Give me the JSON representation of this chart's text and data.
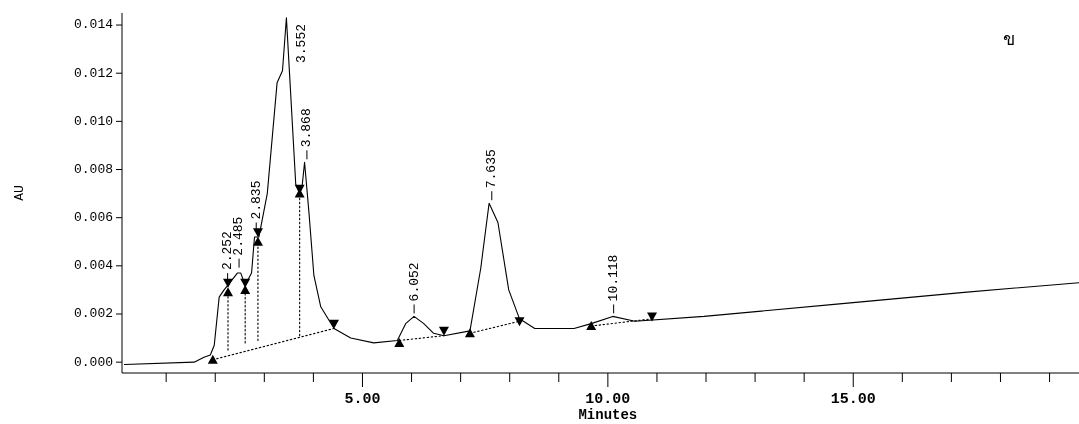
{
  "chart_data": {
    "type": "line",
    "xlabel": "Minutes",
    "ylabel": "AU",
    "xlim": [
      0.1,
      19.6
    ],
    "ylim": [
      -0.00045,
      0.0145
    ],
    "xticks": [
      {
        "value": 1,
        "label": null
      },
      {
        "value": 2,
        "label": null
      },
      {
        "value": 3,
        "label": null
      },
      {
        "value": 4,
        "label": null
      },
      {
        "value": 5,
        "label": "5.00"
      },
      {
        "value": 6,
        "label": null
      },
      {
        "value": 7,
        "label": null
      },
      {
        "value": 8,
        "label": null
      },
      {
        "value": 9,
        "label": null
      },
      {
        "value": 10,
        "label": "10.00"
      },
      {
        "value": 11,
        "label": null
      },
      {
        "value": 12,
        "label": null
      },
      {
        "value": 13,
        "label": null
      },
      {
        "value": 14,
        "label": null
      },
      {
        "value": 15,
        "label": "15.00"
      },
      {
        "value": 16,
        "label": null
      },
      {
        "value": 17,
        "label": null
      },
      {
        "value": 18,
        "label": null
      },
      {
        "value": 19,
        "label": null
      }
    ],
    "yticks": [
      {
        "value": 0,
        "label": "0.000"
      },
      {
        "value": 0.002,
        "label": "0.002"
      },
      {
        "value": 0.004,
        "label": "0.004"
      },
      {
        "value": 0.006,
        "label": "0.006"
      },
      {
        "value": 0.008,
        "label": "0.008"
      },
      {
        "value": 0.01,
        "label": "0.010"
      },
      {
        "value": 0.012,
        "label": "0.012"
      },
      {
        "value": 0.014,
        "label": "0.014"
      }
    ],
    "annotations": [
      "ข",
      {
        "text": "2.252",
        "x": 2.252,
        "y": 0.0032
      },
      {
        "text": "2.485",
        "x": 2.485,
        "y": 0.0038
      },
      {
        "text": "2.835",
        "x": 2.835,
        "y": 0.0053
      },
      {
        "text": "3.552",
        "x": 3.552,
        "y": 0.0143
      },
      {
        "text": "3.868",
        "x": 3.868,
        "y": 0.0083
      },
      {
        "text": "6.052",
        "x": 6.052,
        "y": 0.0019
      },
      {
        "text": "7.635",
        "x": 7.635,
        "y": 0.0066
      },
      {
        "text": "10.118",
        "x": 10.118,
        "y": 0.0019
      }
    ],
    "series": [
      {
        "color": "#000000",
        "line_style": "solid",
        "x": [
          0.15,
          1.57,
          1.77,
          1.9,
          1.98,
          2.08,
          2.18,
          2.26,
          2.45,
          2.52,
          2.61,
          2.74,
          2.8,
          2.89,
          3.06,
          3.26,
          3.37,
          3.45,
          3.53,
          3.64,
          3.72,
          3.77,
          3.82,
          3.91,
          4.01,
          4.15,
          4.42,
          4.76,
          5.23,
          5.71,
          5.88,
          6.05,
          6.25,
          6.45,
          6.66,
          7.19,
          7.41,
          7.58,
          7.76,
          7.98,
          8.2,
          8.51,
          9.31,
          9.66,
          10.1,
          10.55,
          11.96,
          14.61,
          17.26,
          19.6
        ],
        "values": [
          -0.0001,
          0,
          0.0002,
          0.0003,
          0.0007,
          0.0027,
          0.003,
          0.0032,
          0.0037,
          0.0037,
          0.0032,
          0.0037,
          0.0052,
          0.0052,
          0.007,
          0.0116,
          0.0121,
          0.0143,
          0.0114,
          0.0074,
          0.007,
          0.0073,
          0.0083,
          0.0062,
          0.0036,
          0.0023,
          0.0014,
          0.001,
          0.0008,
          0.0009,
          0.0016,
          0.0019,
          0.0016,
          0.0012,
          0.0011,
          0.0013,
          0.0039,
          0.0066,
          0.0058,
          0.003,
          0.0018,
          0.0014,
          0.0014,
          0.0016,
          0.0019,
          0.0017,
          0.0019,
          0.0024,
          0.0029,
          0.0033
        ]
      },
      {
        "type": "line",
        "color": "#000000",
        "line_style": "dotted",
        "x": [
          1.95,
          4.42,
          null,
          5.75,
          6.66,
          null,
          7.19,
          8.2,
          null,
          9.66,
          10.9
        ],
        "values": [
          0.0001,
          0.0014,
          null,
          0.0009,
          0.0011,
          null,
          0.0012,
          0.0017,
          null,
          0.0015,
          0.0018
        ]
      },
      {
        "type": "line",
        "color": "#000000",
        "line_style": "dotted",
        "x": [
          2.26,
          2.26,
          null,
          2.61,
          2.61,
          null,
          2.87,
          2.87,
          null,
          3.72,
          3.72
        ],
        "values": [
          0.0005,
          0.003,
          null,
          0.0008,
          0.0031,
          null,
          0.0009,
          0.005,
          null,
          0.0011,
          0.007
        ]
      },
      {
        "type": "scatter",
        "color": "#000000",
        "marker": "triangle",
        "x": [
          1.95,
          2.26,
          2.61,
          2.87,
          3.72,
          5.75,
          7.19,
          9.66
        ],
        "values": [
          0.0001,
          0.0029,
          0.003,
          0.005,
          0.007,
          0.0008,
          0.0012,
          0.0015
        ]
      },
      {
        "type": "scatter",
        "color": "#000000",
        "marker": "triangle_down",
        "x": [
          2.26,
          2.61,
          2.87,
          3.72,
          4.42,
          6.66,
          8.2,
          10.9
        ],
        "values": [
          0.0033,
          0.0033,
          0.0054,
          0.0072,
          0.0016,
          0.0013,
          0.0017,
          0.0019
        ]
      }
    ]
  }
}
